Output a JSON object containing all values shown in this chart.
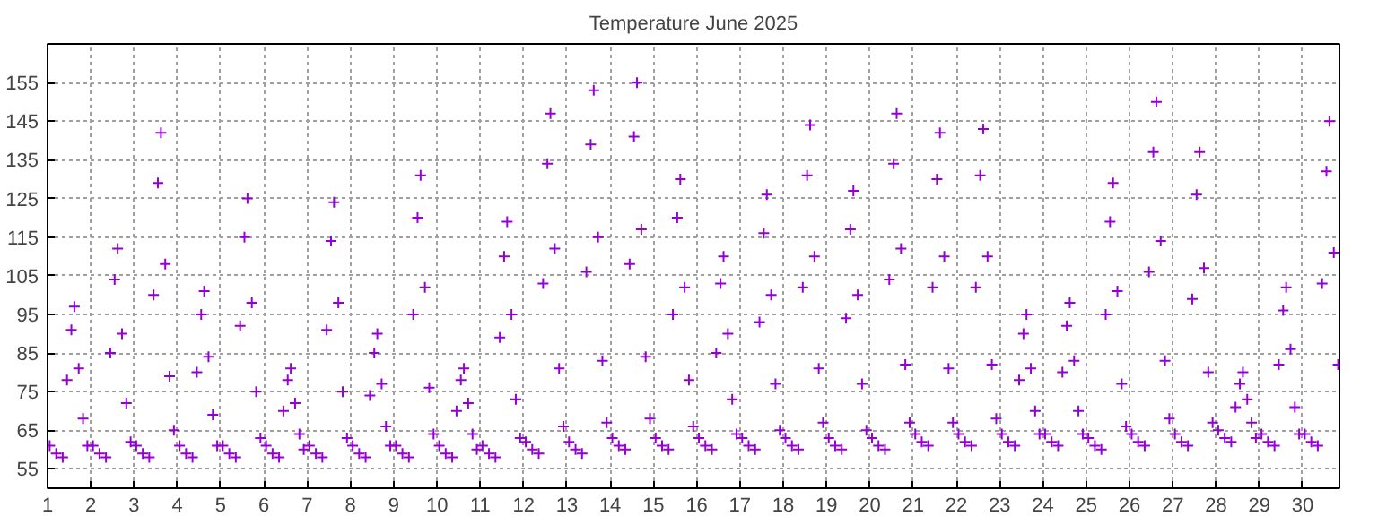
{
  "chart_data": {
    "type": "scatter",
    "title": "Temperature June 2025",
    "marker": "cross",
    "grid": true,
    "xlim": [
      1,
      30.85
    ],
    "ylim": [
      50,
      165
    ],
    "xticks": [
      1,
      2,
      3,
      4,
      5,
      6,
      7,
      8,
      9,
      10,
      11,
      12,
      13,
      14,
      15,
      16,
      17,
      18,
      19,
      20,
      21,
      22,
      23,
      24,
      25,
      26,
      27,
      28,
      29,
      30
    ],
    "yticks": [
      55,
      65,
      75,
      85,
      95,
      105,
      115,
      125,
      135,
      145,
      155
    ],
    "series": [
      {
        "color": "#9400d3",
        "x": [
          1.05,
          1.2,
          1.35,
          1.45,
          1.55,
          1.62,
          1.72,
          1.82,
          1.92,
          2.05,
          2.2,
          2.35,
          2.45,
          2.55,
          2.62,
          2.72,
          2.82,
          2.92,
          3.05,
          3.2,
          3.35,
          3.45,
          3.55,
          3.62,
          3.72,
          3.82,
          3.92,
          4.05,
          4.2,
          4.35,
          4.45,
          4.55,
          4.62,
          4.72,
          4.82,
          4.92,
          5.05,
          5.2,
          5.35,
          5.45,
          5.55,
          5.62,
          5.72,
          5.82,
          5.92,
          6.05,
          6.2,
          6.35,
          6.45,
          6.55,
          6.62,
          6.72,
          6.82,
          6.92,
          7.05,
          7.2,
          7.35,
          7.45,
          7.55,
          7.62,
          7.72,
          7.82,
          7.92,
          8.05,
          8.2,
          8.35,
          8.45,
          8.55,
          8.62,
          8.72,
          8.82,
          8.92,
          9.05,
          9.2,
          9.35,
          9.45,
          9.55,
          9.62,
          9.72,
          9.82,
          9.92,
          10.05,
          10.2,
          10.35,
          10.45,
          10.55,
          10.62,
          10.72,
          10.82,
          10.92,
          11.05,
          11.2,
          11.35,
          11.45,
          11.55,
          11.62,
          11.72,
          11.82,
          11.92,
          12.05,
          12.2,
          12.35,
          12.45,
          12.55,
          12.62,
          12.72,
          12.82,
          12.92,
          13.05,
          13.2,
          13.35,
          13.45,
          13.55,
          13.62,
          13.72,
          13.82,
          13.92,
          14.05,
          14.2,
          14.35,
          14.45,
          14.55,
          14.62,
          14.72,
          14.82,
          14.92,
          15.05,
          15.2,
          15.35,
          15.45,
          15.55,
          15.62,
          15.72,
          15.82,
          15.92,
          16.05,
          16.2,
          16.35,
          16.45,
          16.55,
          16.62,
          16.72,
          16.82,
          16.92,
          17.05,
          17.2,
          17.35,
          17.45,
          17.55,
          17.62,
          17.72,
          17.82,
          17.92,
          18.05,
          18.2,
          18.35,
          18.45,
          18.55,
          18.62,
          18.72,
          18.82,
          18.92,
          19.05,
          19.2,
          19.35,
          19.45,
          19.55,
          19.62,
          19.72,
          19.82,
          19.92,
          20.05,
          20.2,
          20.35,
          20.45,
          20.55,
          20.62,
          20.72,
          20.82,
          20.92,
          21.05,
          21.2,
          21.35,
          21.45,
          21.55,
          21.62,
          21.72,
          21.82,
          21.92,
          22.05,
          22.2,
          22.35,
          22.45,
          22.55,
          22.62,
          22.72,
          22.82,
          22.92,
          23.05,
          23.2,
          23.35,
          23.45,
          23.55,
          23.62,
          23.72,
          23.82,
          23.92,
          24.05,
          24.2,
          24.35,
          24.45,
          24.55,
          24.62,
          24.72,
          24.82,
          24.92,
          25.05,
          25.2,
          25.35,
          25.45,
          25.55,
          25.62,
          25.72,
          25.82,
          25.92,
          26.05,
          26.2,
          26.35,
          26.45,
          26.55,
          26.62,
          26.72,
          26.82,
          26.92,
          27.05,
          27.2,
          27.35,
          27.45,
          27.55,
          27.62,
          27.72,
          27.82,
          27.92,
          28.05,
          28.2,
          28.35,
          28.45,
          28.55,
          28.62,
          28.72,
          28.82,
          28.92,
          29.05,
          29.2,
          29.35,
          29.45,
          29.55,
          29.62,
          29.72,
          29.82,
          29.92,
          30.05,
          30.2,
          30.35,
          30.45,
          30.55,
          30.62,
          30.72,
          30.82
        ],
        "values": [
          61,
          59,
          58,
          78,
          91,
          97,
          81,
          68,
          61,
          61,
          59,
          58,
          85,
          104,
          112,
          90,
          72,
          62,
          61,
          59,
          58,
          100,
          129,
          142,
          108,
          79,
          65,
          61,
          59,
          58,
          80,
          95,
          101,
          84,
          69,
          61,
          61,
          59,
          58,
          92,
          115,
          125,
          98,
          75,
          63,
          61,
          59,
          58,
          70,
          78,
          81,
          72,
          64,
          60,
          61,
          59,
          58,
          91,
          114,
          124,
          98,
          75,
          63,
          61,
          59,
          58,
          74,
          85,
          90,
          77,
          66,
          61,
          61,
          59,
          58,
          95,
          120,
          131,
          102,
          76,
          64,
          61,
          59,
          58,
          70,
          78,
          81,
          72,
          64,
          60,
          61,
          59,
          58,
          89,
          110,
          119,
          95,
          73,
          63,
          62,
          60,
          59,
          103,
          134,
          147,
          112,
          81,
          66,
          62,
          60,
          59,
          106,
          139,
          153,
          115,
          83,
          67,
          63,
          61,
          60,
          108,
          141,
          155,
          117,
          84,
          68,
          63,
          61,
          60,
          95,
          120,
          130,
          102,
          78,
          66,
          63,
          61,
          60,
          85,
          103,
          110,
          90,
          73,
          64,
          63,
          61,
          60,
          93,
          116,
          126,
          100,
          77,
          65,
          63,
          61,
          60,
          102,
          131,
          144,
          110,
          81,
          67,
          63,
          61,
          60,
          94,
          117,
          127,
          100,
          77,
          65,
          63,
          61,
          60,
          104,
          134,
          147,
          112,
          82,
          67,
          64,
          62,
          61,
          102,
          130,
          142,
          110,
          81,
          67,
          64,
          62,
          61,
          102,
          131,
          143,
          110,
          82,
          68,
          64,
          62,
          61,
          78,
          90,
          95,
          81,
          70,
          64,
          64,
          62,
          61,
          80,
          92,
          98,
          83,
          70,
          64,
          63,
          61,
          60,
          95,
          119,
          129,
          101,
          77,
          66,
          64,
          62,
          61,
          106,
          137,
          150,
          114,
          83,
          68,
          64,
          62,
          61,
          99,
          126,
          137,
          107,
          80,
          67,
          65,
          63,
          62,
          71,
          77,
          80,
          73,
          67,
          63,
          64,
          62,
          61,
          82,
          96,
          102,
          86,
          71,
          64,
          64,
          62,
          61,
          103,
          132,
          145,
          111,
          82
        ]
      }
    ]
  }
}
